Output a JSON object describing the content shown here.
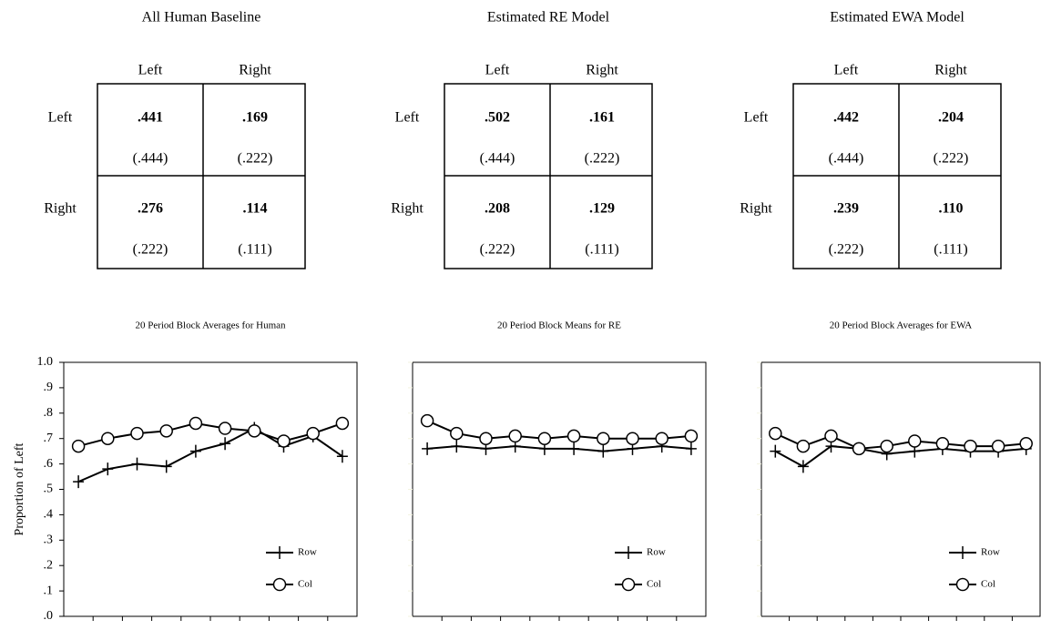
{
  "tables": [
    {
      "title": "All Human Baseline",
      "columns": [
        "Left",
        "Right"
      ],
      "rows": [
        {
          "label": "Left",
          "cells": [
            {
              "value": ".441",
              "prediction": "(.444)"
            },
            {
              "value": ".169",
              "prediction": "(.222)"
            }
          ]
        },
        {
          "label": "Right",
          "cells": [
            {
              "value": ".276",
              "prediction": "(.222)"
            },
            {
              "value": ".114",
              "prediction": "(.111)"
            }
          ]
        }
      ]
    },
    {
      "title": "Estimated RE Model",
      "columns": [
        "Left",
        "Right"
      ],
      "rows": [
        {
          "label": "Left",
          "cells": [
            {
              "value": ".502",
              "prediction": "(.444)"
            },
            {
              "value": ".161",
              "prediction": "(.222)"
            }
          ]
        },
        {
          "label": "Right",
          "cells": [
            {
              "value": ".208",
              "prediction": "(.222)"
            },
            {
              "value": ".129",
              "prediction": "(.111)"
            }
          ]
        }
      ]
    },
    {
      "title": "Estimated EWA Model",
      "columns": [
        "Left",
        "Right"
      ],
      "rows": [
        {
          "label": "Left",
          "cells": [
            {
              "value": ".442",
              "prediction": "(.444)"
            },
            {
              "value": ".204",
              "prediction": "(.222)"
            }
          ]
        },
        {
          "label": "Right",
          "cells": [
            {
              "value": ".239",
              "prediction": "(.222)"
            },
            {
              "value": ".110",
              "prediction": "(.111)"
            }
          ]
        }
      ]
    }
  ],
  "chart_data": [
    {
      "type": "line",
      "title": "20 Period Block Averages for Human",
      "y_label": "Proportion of Left",
      "ylim": [
        0,
        1
      ],
      "yticks": [
        {
          "value": 0,
          "label": ".0"
        },
        {
          "value": 0.1,
          "label": ".1"
        },
        {
          "value": 0.2,
          "label": ".2"
        },
        {
          "value": 0.3,
          "label": ".3"
        },
        {
          "value": 0.4,
          "label": ".4"
        },
        {
          "value": 0.5,
          "label": ".5"
        },
        {
          "value": 0.6,
          "label": ".6"
        },
        {
          "value": 0.7,
          "label": ".7"
        },
        {
          "value": 0.8,
          "label": ".8"
        },
        {
          "value": 0.9,
          "label": ".9"
        },
        {
          "value": 1,
          "label": "1.0"
        }
      ],
      "series": [
        {
          "name": "Row",
          "color": "#000000",
          "marker": "plus",
          "values": [
            0.53,
            0.58,
            0.6,
            0.59,
            0.65,
            0.68,
            0.74,
            0.67,
            0.71,
            0.63
          ]
        },
        {
          "name": "Col",
          "color": "#000000",
          "marker": "circle",
          "values": [
            0.67,
            0.7,
            0.72,
            0.73,
            0.76,
            0.74,
            0.73,
            0.69,
            0.72,
            0.76
          ]
        }
      ]
    },
    {
      "type": "line",
      "title": "20 Period Block Means for RE",
      "ylim": [
        0,
        1
      ],
      "yticks": [
        0,
        0.1,
        0.2,
        0.3,
        0.4,
        0.5,
        0.6,
        0.7,
        0.8,
        0.9,
        1
      ],
      "series": [
        {
          "name": "Row",
          "color": "#000000",
          "marker": "plus",
          "values": [
            0.66,
            0.67,
            0.66,
            0.67,
            0.66,
            0.66,
            0.65,
            0.66,
            0.67,
            0.66
          ]
        },
        {
          "name": "Col",
          "color": "#000000",
          "marker": "circle",
          "values": [
            0.77,
            0.72,
            0.7,
            0.71,
            0.7,
            0.71,
            0.7,
            0.7,
            0.7,
            0.71
          ]
        }
      ]
    },
    {
      "type": "line",
      "title": "20 Period Block Averages for EWA",
      "ylim": [
        0,
        1
      ],
      "yticks": [
        0,
        0.1,
        0.2,
        0.3,
        0.4,
        0.5,
        0.6,
        0.7,
        0.8,
        0.9,
        1
      ],
      "series": [
        {
          "name": "Row",
          "color": "#000000",
          "marker": "plus",
          "values": [
            0.65,
            0.59,
            0.67,
            0.66,
            0.64,
            0.65,
            0.66,
            0.65,
            0.65,
            0.66
          ]
        },
        {
          "name": "Col",
          "color": "#000000",
          "marker": "circle",
          "values": [
            0.72,
            0.67,
            0.71,
            0.66,
            0.67,
            0.69,
            0.68,
            0.67,
            0.67,
            0.68
          ]
        }
      ]
    }
  ]
}
